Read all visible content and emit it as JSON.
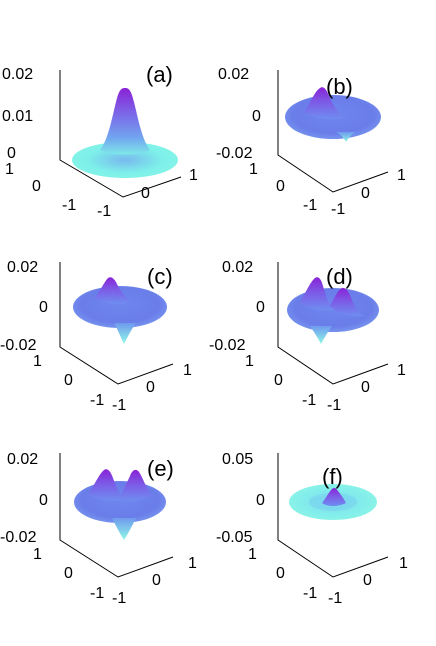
{
  "colors": {
    "background": "#ffffff",
    "axis": "#000000",
    "colormap_low": "#7ff2e9",
    "colormap_mid": "#6f8ef0",
    "colormap_high": "#8b2ed8"
  },
  "chart_data": [
    {
      "type": "surface",
      "label": "(a)",
      "zticks": [
        "0.02",
        "0.01",
        "0"
      ],
      "zlim": [
        0,
        0.02
      ],
      "xticks": [
        "0",
        "1"
      ],
      "yticks": [
        "-1",
        "0",
        "1"
      ],
      "xlim": [
        -1,
        1
      ],
      "ylim": [
        -1,
        1
      ],
      "peaks": [
        {
          "x": 0,
          "y": 0,
          "z": 0.02
        }
      ]
    },
    {
      "type": "surface",
      "label": "(b)",
      "zticks": [
        "0.02",
        "0",
        "-0.02"
      ],
      "zlim": [
        -0.02,
        0.02
      ],
      "xticks": [
        "0",
        "1"
      ],
      "yticks": [
        "-1",
        "0",
        "1"
      ],
      "xlim": [
        -1,
        1
      ],
      "ylim": [
        -1,
        1
      ],
      "peaks": [
        {
          "x": -0.4,
          "y": 0.1,
          "z": 0.015
        },
        {
          "x": 0.4,
          "y": -0.1,
          "z": -0.008
        }
      ]
    },
    {
      "type": "surface",
      "label": "(c)",
      "zticks": [
        "0.02",
        "0",
        "-0.02"
      ],
      "zlim": [
        -0.02,
        0.02
      ],
      "xticks": [
        "0",
        "1"
      ],
      "yticks": [
        "-1",
        "0",
        "1"
      ],
      "xlim": [
        -1,
        1
      ],
      "ylim": [
        -1,
        1
      ],
      "peaks": [
        {
          "x": -0.1,
          "y": 0.4,
          "z": 0.015
        },
        {
          "x": 0.1,
          "y": -0.4,
          "z": -0.015
        }
      ]
    },
    {
      "type": "surface",
      "label": "(d)",
      "zticks": [
        "0.02",
        "0",
        "-0.02"
      ],
      "zlim": [
        -0.02,
        0.02
      ],
      "xticks": [
        "0",
        "1"
      ],
      "yticks": [
        "-1",
        "0",
        "1"
      ],
      "xlim": [
        -1,
        1
      ],
      "ylim": [
        -1,
        1
      ],
      "peaks": [
        {
          "x": -0.3,
          "y": 0.3,
          "z": 0.018
        },
        {
          "x": 0.35,
          "y": 0.15,
          "z": 0.016
        },
        {
          "x": 0.05,
          "y": -0.45,
          "z": -0.016
        }
      ]
    },
    {
      "type": "surface",
      "label": "(e)",
      "zticks": [
        "0.02",
        "0",
        "-0.02"
      ],
      "zlim": [
        -0.02,
        0.02
      ],
      "xticks": [
        "0",
        "1"
      ],
      "yticks": [
        "-1",
        "0",
        "1"
      ],
      "xlim": [
        -1,
        1
      ],
      "ylim": [
        -1,
        1
      ],
      "peaks": [
        {
          "x": -0.35,
          "y": 0.3,
          "z": 0.018
        },
        {
          "x": 0.35,
          "y": 0.3,
          "z": 0.018
        },
        {
          "x": 0,
          "y": -0.4,
          "z": -0.016
        }
      ]
    },
    {
      "type": "surface",
      "label": "(f)",
      "zticks": [
        "0.05",
        "0",
        "-0.05"
      ],
      "zlim": [
        -0.05,
        0.05
      ],
      "xticks": [
        "0",
        "1"
      ],
      "yticks": [
        "-1",
        "0",
        "1"
      ],
      "xlim": [
        -1,
        1
      ],
      "ylim": [
        -1,
        1
      ],
      "peaks": [
        {
          "x": 0,
          "y": 0,
          "z": 0.02
        }
      ]
    }
  ]
}
